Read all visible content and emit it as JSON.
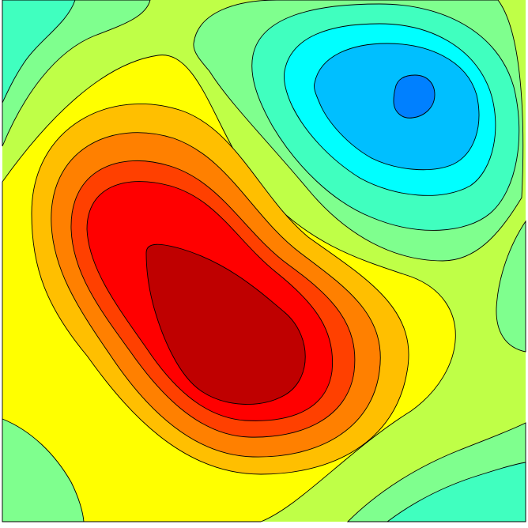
{
  "chart_data": {
    "type": "contour",
    "title": "",
    "xlabel": "",
    "ylabel": "",
    "grid": false,
    "legend": "none",
    "levels": [
      {
        "level": 1,
        "color": "#7FFF8E"
      },
      {
        "level": 2,
        "color": "#BFFF47"
      },
      {
        "level": 3,
        "color": "#FFFF00"
      },
      {
        "level": 4,
        "color": "#FFBF00"
      },
      {
        "level": 5,
        "color": "#FF8000"
      },
      {
        "level": 6,
        "color": "#FF4000"
      },
      {
        "level": 7,
        "color": "#FF0000"
      },
      {
        "level": 8,
        "color": "#BF0000"
      }
    ],
    "low_levels": [
      {
        "level": -4,
        "color": "#0080FF"
      },
      {
        "level": -3,
        "color": "#00BFFF"
      },
      {
        "level": -2,
        "color": "#00FFFF"
      },
      {
        "level": -1,
        "color": "#40FFBF"
      },
      {
        "level": 0,
        "color": "#7FFF8E"
      }
    ],
    "side_levels": [
      {
        "level": 0,
        "color": "#7FFF8E"
      },
      {
        "level": -1,
        "color": "#40FFBF"
      }
    ],
    "background_color": "#BFFF47"
  }
}
